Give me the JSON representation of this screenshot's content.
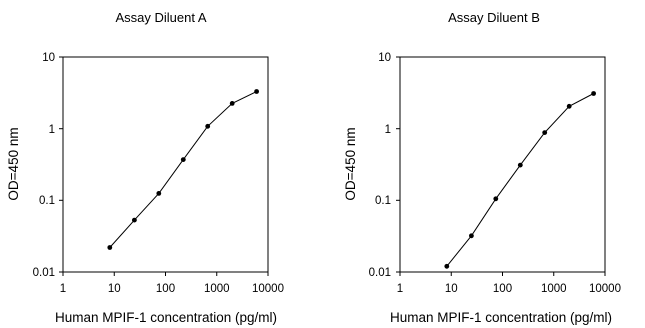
{
  "chart_data": [
    {
      "type": "line",
      "title": "Assay Diluent A",
      "xlabel": "Human MPIF-1 concentration (pg/ml)",
      "ylabel": "OD=450 nm",
      "xscale": "log",
      "yscale": "log",
      "xlim": [
        1,
        10000
      ],
      "ylim": [
        0.01,
        10
      ],
      "xticks": [
        1,
        10,
        100,
        1000,
        10000
      ],
      "xtick_labels": [
        "1",
        "10",
        "100",
        "1000",
        "10000"
      ],
      "yticks": [
        0.01,
        0.1,
        1,
        10
      ],
      "ytick_labels": [
        "0.01",
        "0.1",
        "1",
        "10"
      ],
      "grid": false,
      "series": [
        {
          "x": [
            8.2,
            24.7,
            74,
            222,
            667,
            2000,
            6000
          ],
          "y": [
            0.022,
            0.053,
            0.125,
            0.37,
            1.08,
            2.25,
            3.3
          ]
        }
      ],
      "colors": {
        "line": "#000000",
        "marker": "#000000"
      }
    },
    {
      "type": "line",
      "title": "Assay Diluent B",
      "xlabel": "Human MPIF-1 concentration (pg/ml)",
      "ylabel": "OD=450 nm",
      "xscale": "log",
      "yscale": "log",
      "xlim": [
        1,
        10000
      ],
      "ylim": [
        0.01,
        10
      ],
      "xticks": [
        1,
        10,
        100,
        1000,
        10000
      ],
      "xtick_labels": [
        "1",
        "10",
        "100",
        "1000",
        "10000"
      ],
      "yticks": [
        0.01,
        0.1,
        1,
        10
      ],
      "ytick_labels": [
        "0.01",
        "0.1",
        "1",
        "10"
      ],
      "grid": false,
      "series": [
        {
          "x": [
            8.2,
            24.7,
            74,
            222,
            667,
            2000,
            6000
          ],
          "y": [
            0.012,
            0.032,
            0.105,
            0.31,
            0.88,
            2.05,
            3.1
          ]
        }
      ],
      "colors": {
        "line": "#000000",
        "marker": "#000000"
      }
    }
  ]
}
